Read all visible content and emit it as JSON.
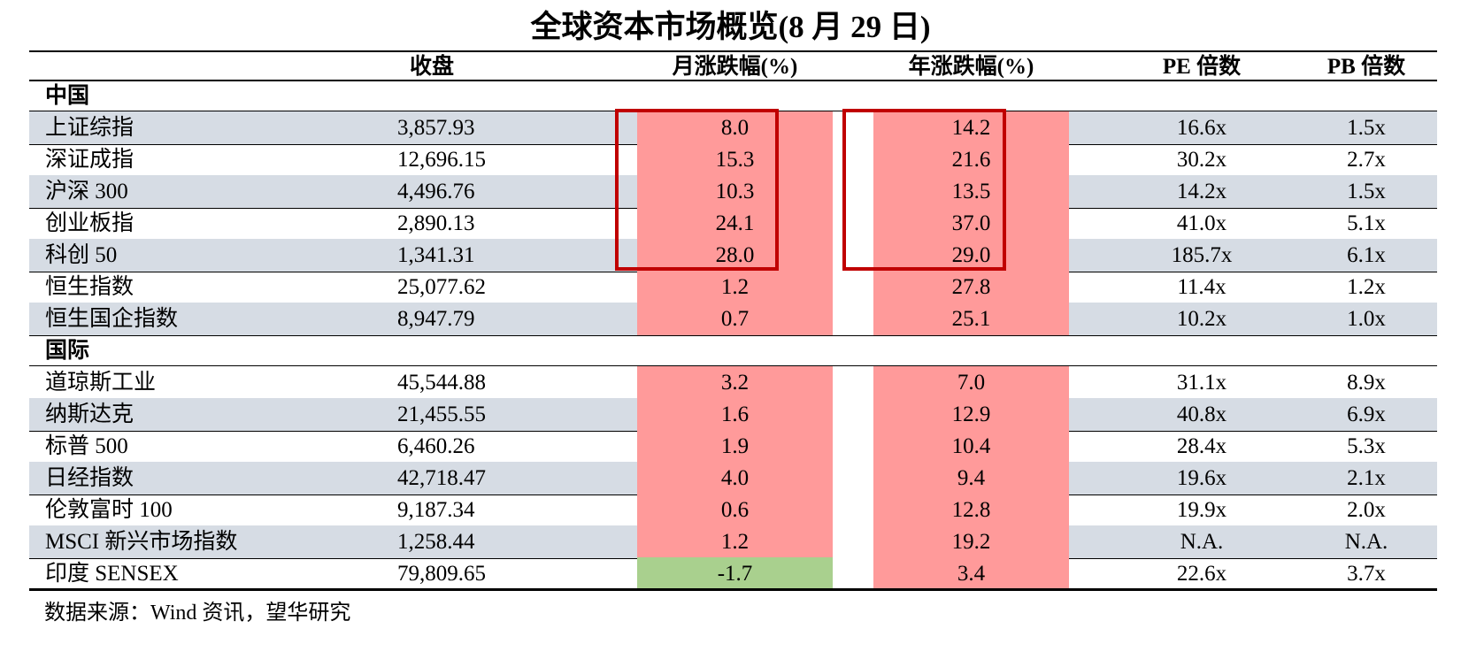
{
  "title": "全球资本市场概览(8 月 29 日)",
  "headers": {
    "close": "收盘",
    "month_change": "月涨跌幅(%)",
    "year_change": "年涨跌幅(%)",
    "pe": "PE 倍数",
    "pb": "PB 倍数"
  },
  "sections": {
    "china": "中国",
    "intl": "国际"
  },
  "rows": [
    {
      "name": "上证综指",
      "close": "3,857.93",
      "month": "8.0",
      "year": "14.2",
      "pe": "16.6x",
      "pb": "1.5x",
      "month_color": "red"
    },
    {
      "name": "深证成指",
      "close": "12,696.15",
      "month": "15.3",
      "year": "21.6",
      "pe": "30.2x",
      "pb": "2.7x",
      "month_color": "red"
    },
    {
      "name": "沪深 300",
      "close": "4,496.76",
      "month": "10.3",
      "year": "13.5",
      "pe": "14.2x",
      "pb": "1.5x",
      "month_color": "red"
    },
    {
      "name": "创业板指",
      "close": "2,890.13",
      "month": "24.1",
      "year": "37.0",
      "pe": "41.0x",
      "pb": "5.1x",
      "month_color": "red"
    },
    {
      "name": "科创 50",
      "close": "1,341.31",
      "month": "28.0",
      "year": "29.0",
      "pe": "185.7x",
      "pb": "6.1x",
      "month_color": "red"
    },
    {
      "name": "恒生指数",
      "close": "25,077.62",
      "month": "1.2",
      "year": "27.8",
      "pe": "11.4x",
      "pb": "1.2x",
      "month_color": "red"
    },
    {
      "name": "恒生国企指数",
      "close": "8,947.79",
      "month": "0.7",
      "year": "25.1",
      "pe": "10.2x",
      "pb": "1.0x",
      "month_color": "red"
    },
    {
      "name": "道琼斯工业",
      "close": "45,544.88",
      "month": "3.2",
      "year": "7.0",
      "pe": "31.1x",
      "pb": "8.9x",
      "month_color": "red"
    },
    {
      "name": "纳斯达克",
      "close": "21,455.55",
      "month": "1.6",
      "year": "12.9",
      "pe": "40.8x",
      "pb": "6.9x",
      "month_color": "red"
    },
    {
      "name": "标普 500",
      "close": "6,460.26",
      "month": "1.9",
      "year": "10.4",
      "pe": "28.4x",
      "pb": "5.3x",
      "month_color": "red"
    },
    {
      "name": "日经指数",
      "close": "42,718.47",
      "month": "4.0",
      "year": "9.4",
      "pe": "19.6x",
      "pb": "2.1x",
      "month_color": "red"
    },
    {
      "name": "伦敦富时 100",
      "close": "9,187.34",
      "month": "0.6",
      "year": "12.8",
      "pe": "19.9x",
      "pb": "2.0x",
      "month_color": "red"
    },
    {
      "name": "MSCI 新兴市场指数",
      "close": "1,258.44",
      "month": "1.2",
      "year": "19.2",
      "pe": "N.A.",
      "pb": "N.A.",
      "month_color": "red"
    },
    {
      "name": "印度 SENSEX",
      "close": "79,809.65",
      "month": "-1.7",
      "year": "3.4",
      "pe": "22.6x",
      "pb": "3.7x",
      "month_color": "green"
    }
  ],
  "colors": {
    "positive": "#ff9a9a",
    "negative": "#a9d08e",
    "row_shade": "#d6dce4",
    "highlight_border": "#c00000"
  },
  "source": "数据来源：Wind 资讯，望华研究"
}
